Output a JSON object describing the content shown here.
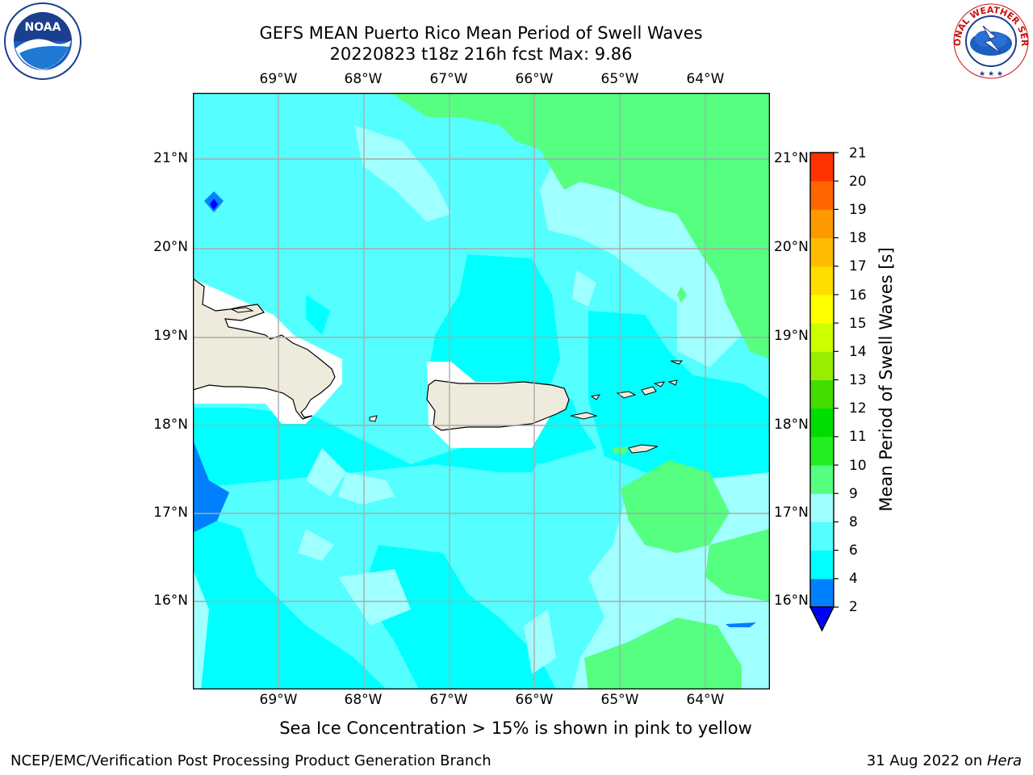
{
  "header": {
    "title_line1": "GEFS MEAN Puerto Rico Mean Period of Swell Waves",
    "title_line2": "20220823 t18z 216h fcst   Max: 9.86"
  },
  "logos": {
    "left": {
      "text": "NOAA",
      "ring_text": "NATIONAL OCEANIC AND ATMOSPHERIC ADMINISTRATION · U.S. DEPARTMENT OF COMMERCE ·"
    },
    "right": {
      "ring_text": "NATIONAL WEATHER SERVICE"
    }
  },
  "map": {
    "lon_labels": [
      "69°W",
      "68°W",
      "67°W",
      "66°W",
      "65°W",
      "64°W"
    ],
    "lat_labels": [
      "21°N",
      "20°N",
      "19°N",
      "18°N",
      "17°N",
      "16°N"
    ],
    "field_colors": {
      "c2_4": "#0080ff",
      "c4_6": "#00ffff",
      "c6_8": "#55ffff",
      "c8_9": "#a0ffff",
      "c9_10": "#55ff80",
      "land": "#efebdc",
      "dark_blue": "#0000ff"
    }
  },
  "colorbar": {
    "label": "Mean Period of Swell Waves [s]",
    "ticks": [
      "2",
      "4",
      "6",
      "8",
      "9",
      "10",
      "11",
      "12",
      "13",
      "14",
      "15",
      "16",
      "17",
      "18",
      "19",
      "20",
      "21"
    ],
    "colors": [
      "#0080ff",
      "#00ffff",
      "#55ffff",
      "#a0ffff",
      "#55ff80",
      "#22ee22",
      "#00dd00",
      "#44dd00",
      "#99ee00",
      "#ccff00",
      "#ffff00",
      "#ffdd00",
      "#ffbb00",
      "#ff9900",
      "#ff6600",
      "#ff3300",
      "#ff0000"
    ],
    "under_color": "#0000ff"
  },
  "note": "Sea Ice Concentration > 15% is shown in pink to yellow",
  "footer": {
    "left": "NCEP/EMC/Verification Post Processing Product Generation Branch",
    "date": "31 Aug 2022 on ",
    "host": "Hera"
  }
}
